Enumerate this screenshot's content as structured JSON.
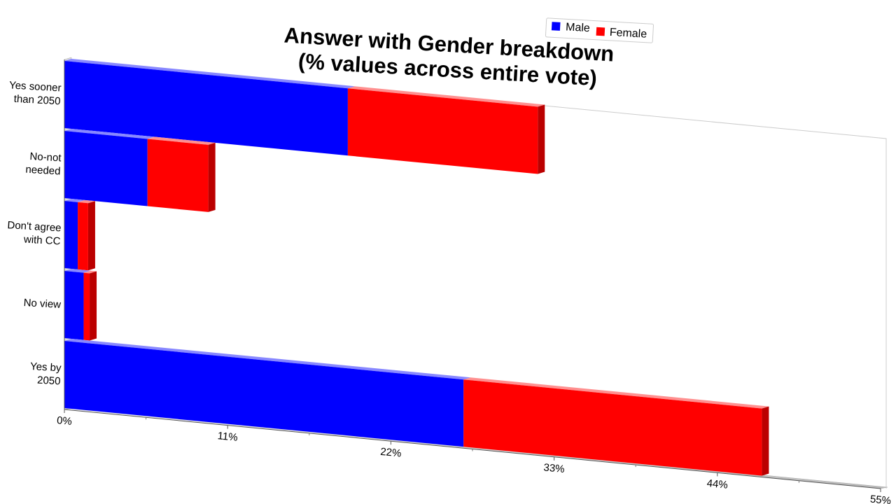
{
  "chart_data": {
    "type": "bar",
    "orientation": "horizontal",
    "stacked": true,
    "title": [
      "Answer with Gender breakdown",
      "(% values across entire vote)"
    ],
    "categories": [
      "Yes sooner than 2050",
      "No-not needed",
      "Don't agree with CC",
      "No view",
      "Yes by 2050"
    ],
    "category_labels": [
      [
        "Yes sooner",
        "than 2050"
      ],
      [
        "No-not",
        "needed"
      ],
      [
        "Don't agree",
        "with CC"
      ],
      [
        "No view"
      ],
      [
        "Yes by",
        "2050"
      ]
    ],
    "series": [
      {
        "name": "Male",
        "values": [
          19.1,
          5.6,
          0.9,
          1.3,
          26.9
        ]
      },
      {
        "name": "Female",
        "values": [
          12.8,
          4.1,
          0.7,
          0.4,
          20.1
        ]
      }
    ],
    "xlim": [
      0,
      55
    ],
    "x_ticks": [
      "0%",
      "11%",
      "22%",
      "33%",
      "44%",
      "55%"
    ],
    "legend": {
      "position": "top-right"
    },
    "colors": {
      "Male": "#0000ff",
      "Female": "#ff0000"
    },
    "grid": false
  }
}
